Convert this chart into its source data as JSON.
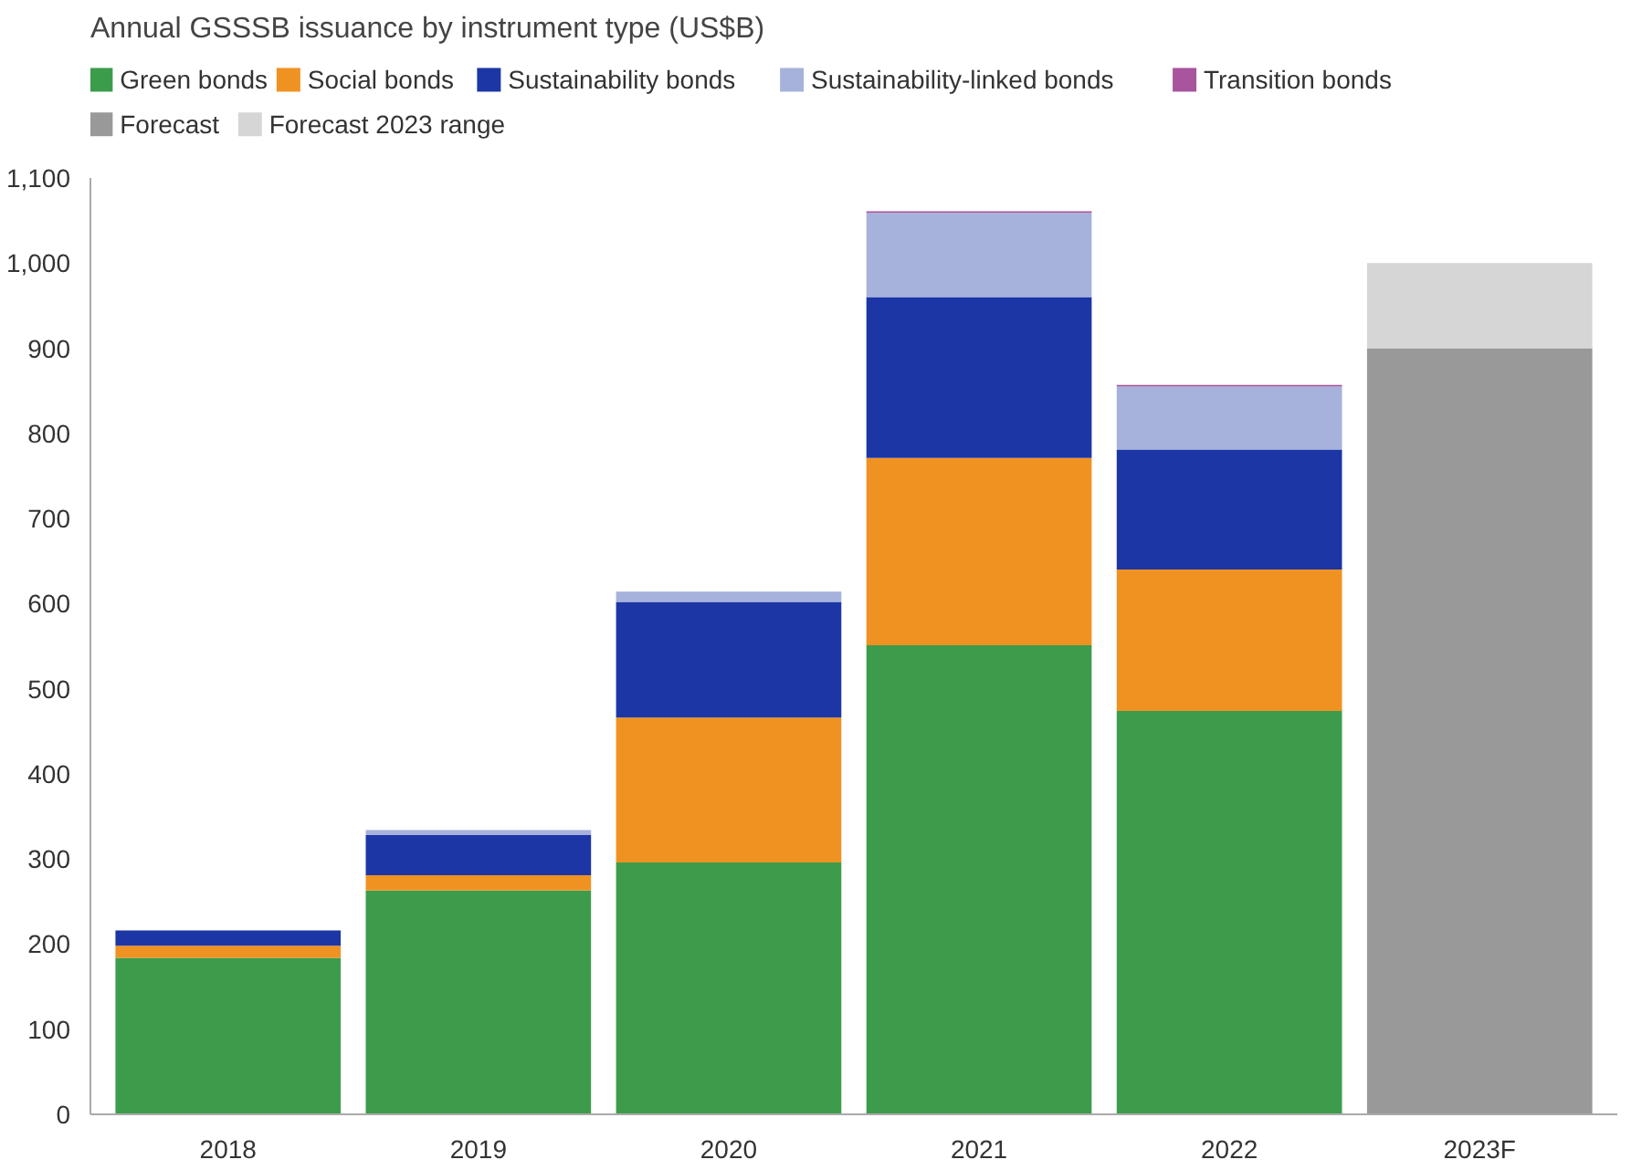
{
  "chart_data": {
    "type": "bar",
    "title": "Annual GSSSB issuance by instrument type (US$B)",
    "stacked": true,
    "categories": [
      "2018",
      "2019",
      "2020",
      "2021",
      "2022",
      "2023F"
    ],
    "series": [
      {
        "name": "Green bonds",
        "color": "#3d9c4b",
        "values": [
          184,
          263,
          296,
          551,
          474,
          null
        ]
      },
      {
        "name": "Social bonds",
        "color": "#ef9222",
        "values": [
          14,
          18,
          170,
          220,
          166,
          null
        ]
      },
      {
        "name": "Sustainability bonds",
        "color": "#1c36a6",
        "values": [
          18,
          47,
          136,
          189,
          141,
          null
        ]
      },
      {
        "name": "Sustainability-linked bonds",
        "color": "#a6b2dc",
        "values": [
          null,
          6,
          12,
          99,
          74,
          null
        ]
      },
      {
        "name": "Transition bonds",
        "color": "#a8559e",
        "values": [
          null,
          null,
          null,
          2,
          2,
          null
        ]
      },
      {
        "name": "Forecast",
        "color": "#999999",
        "values": [
          null,
          null,
          null,
          null,
          null,
          900
        ]
      },
      {
        "name": "Forecast 2023 range",
        "color": "#d6d6d6",
        "values": [
          null,
          null,
          null,
          null,
          null,
          100
        ]
      }
    ],
    "ylim": [
      0,
      1100
    ],
    "yticks": [
      0,
      {
        "value": 100,
        "label": "100"
      },
      200,
      300,
      400,
      500,
      600,
      700,
      800,
      900,
      {
        "value": 1000,
        "label": "1,000"
      },
      {
        "value": 1100,
        "label": "1,100"
      }
    ],
    "grid": false,
    "legend": "top"
  }
}
